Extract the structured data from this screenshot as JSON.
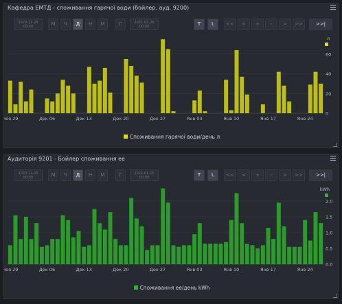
{
  "panel1": {
    "title": "Кафедра ЕМТД - споживання гарячої води (бойлер. ауд. 9200)",
    "date_from": [
      "2020-11-26",
      "00:00"
    ],
    "date_to": [
      "2021-01-26",
      "00:00"
    ],
    "period_buttons": [
      "М",
      "Ч",
      "Д",
      "Н",
      "М",
      "Г"
    ],
    "active_period": 2,
    "tl_buttons": [
      "T",
      "L"
    ],
    "nav_buttons": [
      "<<",
      "<",
      "+",
      "-",
      ">",
      ">>"
    ],
    "end_button": ">>|",
    "legend_label": "Споживання гарячої води/день л"
  },
  "panel2": {
    "title": "Аудиторія 9201 - Бойлер споживання ее",
    "date_from": [
      "2020-11-26",
      "00:00"
    ],
    "date_to": [
      "2021-01-26",
      "00:00"
    ],
    "period_buttons": [
      "М",
      "Ч",
      "Д",
      "Н",
      "М",
      "Г"
    ],
    "active_period": 2,
    "tl_buttons": [
      "T",
      "L"
    ],
    "nav_buttons": [
      "<<",
      "<",
      "+",
      "-",
      ">",
      ">>"
    ],
    "end_button": ">>|",
    "legend_label": "Споживання ее/день kWh"
  },
  "chart_data": [
    {
      "type": "bar",
      "color": "#bdbd17",
      "unit": "л",
      "ylim": [
        0,
        80
      ],
      "yticks": [
        0,
        20,
        40,
        60
      ],
      "x_ticks": [
        {
          "label": "Ноя 29",
          "index": 0
        },
        {
          "label": "Дек 06",
          "index": 7
        },
        {
          "label": "Дек 13",
          "index": 14
        },
        {
          "label": "Дек 20",
          "index": 21
        },
        {
          "label": "Дек 27",
          "index": 28
        },
        {
          "label": "Янв 03",
          "index": 35
        },
        {
          "label": "Янв 10",
          "index": 42
        },
        {
          "label": "Янв 17",
          "index": 49
        },
        {
          "label": "Янв 24",
          "index": 56
        }
      ],
      "values": [
        33,
        9,
        32,
        12,
        24,
        0,
        0,
        15,
        12,
        20,
        34,
        28,
        20,
        0,
        0,
        47,
        30,
        33,
        46,
        21,
        0,
        0,
        55,
        48,
        38,
        31,
        0,
        0,
        0,
        75,
        65,
        2,
        0,
        0,
        0,
        13,
        23,
        2,
        0,
        0,
        0,
        34,
        3,
        64,
        37,
        19,
        0,
        0,
        9,
        0,
        0,
        42,
        28,
        12,
        0,
        0,
        0,
        29,
        42,
        30
      ]
    },
    {
      "type": "bar",
      "color": "#2c9b2c",
      "unit": "kWh",
      "ylim": [
        0,
        2.5
      ],
      "yticks": [
        0.0,
        0.5,
        1.0,
        1.5,
        2.0
      ],
      "x_ticks": [
        {
          "label": "Ноя 29",
          "index": 0
        },
        {
          "label": "Дек 06",
          "index": 7
        },
        {
          "label": "Дек 13",
          "index": 14
        },
        {
          "label": "Дек 20",
          "index": 21
        },
        {
          "label": "Дек 27",
          "index": 28
        },
        {
          "label": "Янв 03",
          "index": 35
        },
        {
          "label": "Янв 10",
          "index": 42
        },
        {
          "label": "Янв 17",
          "index": 49
        },
        {
          "label": "Янв 24",
          "index": 56
        }
      ],
      "values": [
        0.6,
        1.55,
        0.8,
        1.5,
        0.8,
        1.3,
        0.55,
        0.6,
        0.8,
        0.8,
        1.55,
        1.4,
        0.85,
        1.05,
        0.55,
        0.6,
        1.75,
        1.3,
        1.1,
        1.65,
        0.8,
        0.6,
        0.6,
        2.1,
        1.45,
        1.2,
        0.45,
        0.6,
        0.6,
        2.4,
        1.95,
        0.6,
        0.55,
        0.6,
        0.6,
        0.95,
        1.3,
        0.65,
        0.65,
        0.65,
        0.65,
        0.7,
        1.4,
        2.25,
        1.3,
        0.65,
        0.6,
        0.5,
        0.6,
        1.15,
        0.8,
        1.95,
        1.2,
        0.55,
        0.55,
        0.55,
        1.4,
        0.75,
        1.65,
        1.3
      ]
    }
  ]
}
